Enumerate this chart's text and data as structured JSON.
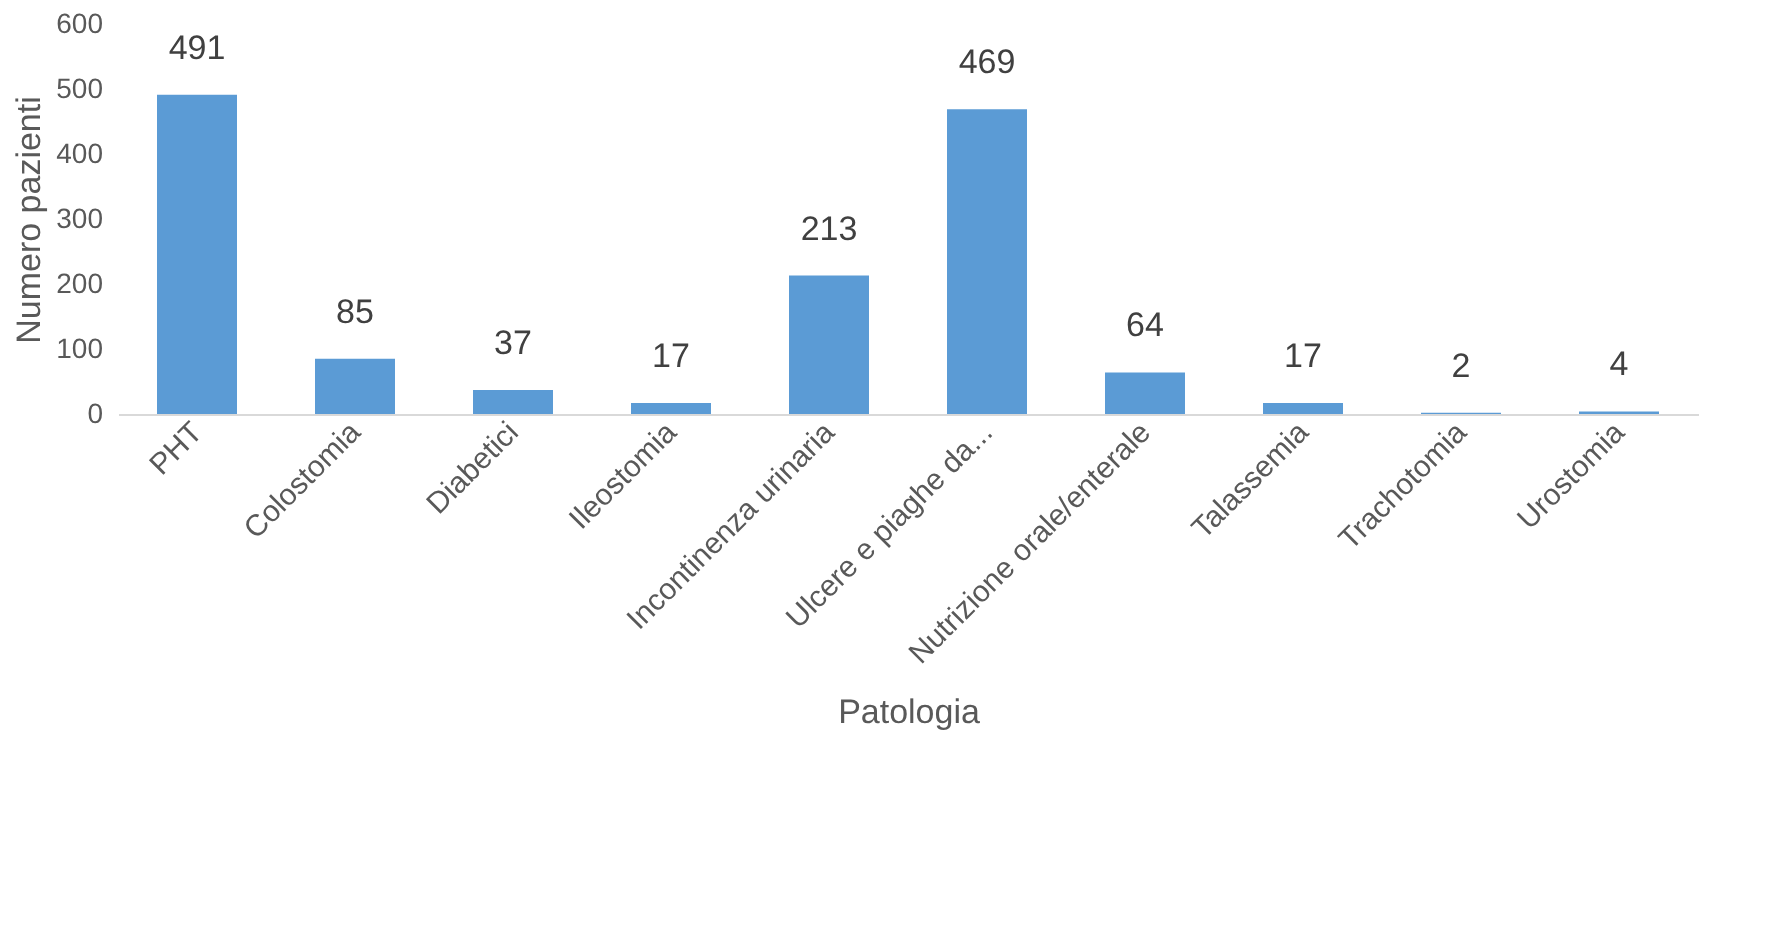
{
  "chart_data": {
    "type": "bar",
    "xlabel": "Patologia",
    "ylabel": "Numero pazienti",
    "categories": [
      "PHT",
      "Colostomia",
      "Diabetici",
      "Ileostomia",
      "Incontinenza urinaria",
      "Ulcere e piaghe da...",
      "Nutrizione orale/enterale",
      "Talassemia",
      "Trachotomia",
      "Urostomia"
    ],
    "values": [
      491,
      85,
      37,
      17,
      213,
      469,
      64,
      17,
      2,
      4
    ],
    "color": "#5b9bd5",
    "ylim": [
      0,
      600
    ],
    "yticks": [
      0,
      100,
      200,
      300,
      400,
      500,
      600
    ],
    "grid": false,
    "data_labels": true
  }
}
